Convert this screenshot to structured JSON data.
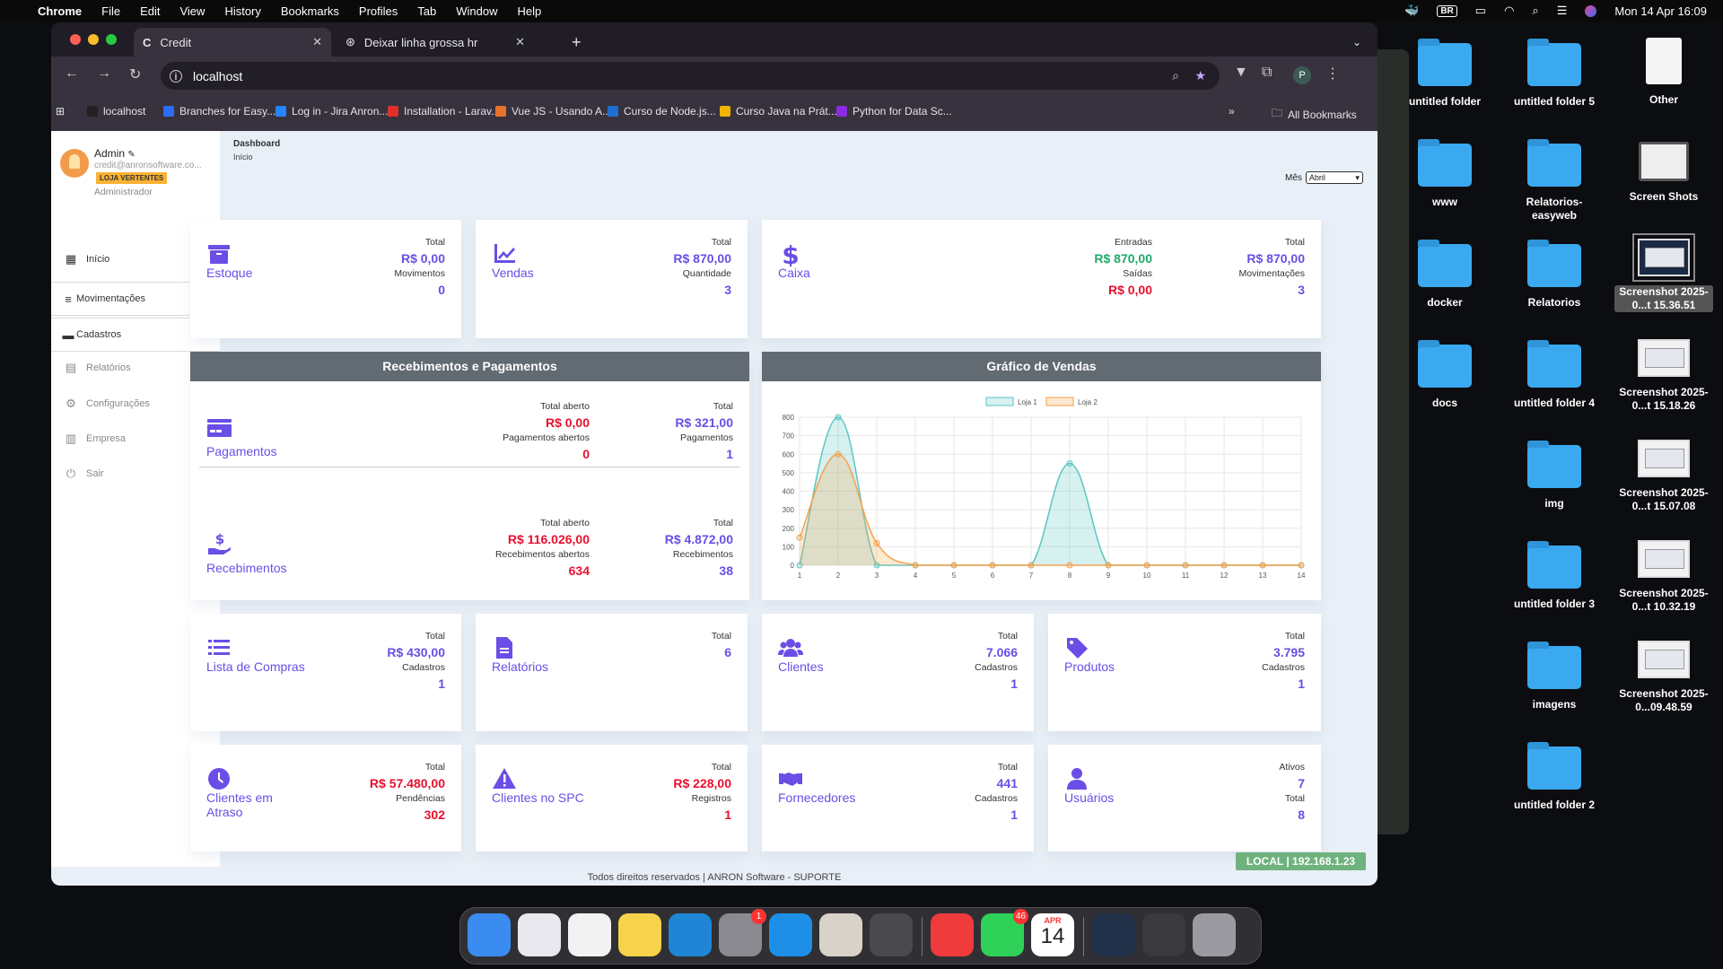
{
  "menubar": {
    "app": "Chrome",
    "items": [
      "File",
      "Edit",
      "View",
      "History",
      "Bookmarks",
      "Profiles",
      "Tab",
      "Window",
      "Help"
    ],
    "input_source": "BR",
    "datetime": "Mon 14 Apr  16:09"
  },
  "browser": {
    "tabs": [
      {
        "title": "Credit",
        "icon": "C",
        "active": true
      },
      {
        "title": "Deixar linha grossa hr",
        "icon": "openai-icon",
        "active": false
      }
    ],
    "url": "localhost",
    "profile_initial": "P",
    "bookmarks": [
      {
        "label": "localhost",
        "color": "#222"
      },
      {
        "label": "Branches for Easy...",
        "color": "#2d6df6"
      },
      {
        "label": "Log in - Jira Anron...",
        "color": "#2684ff"
      },
      {
        "label": "Installation - Larav...",
        "color": "#e0302a"
      },
      {
        "label": "Vue JS - Usando A...",
        "color": "#e8712b"
      },
      {
        "label": "Curso de Node.js...",
        "color": "#1f6fd1"
      },
      {
        "label": "Curso Java na Prát...",
        "color": "#f0b400"
      },
      {
        "label": "Python for Data Sc...",
        "color": "#8a2be2"
      }
    ],
    "all_bookmarks": "All Bookmarks"
  },
  "sidebar": {
    "user": {
      "name": "Admin",
      "email": "credit@anronsoftware.co...",
      "store": "LOJA VERTENTES",
      "role": "Administrador"
    },
    "items": [
      {
        "label": "Início",
        "icon": "dashboard-icon"
      },
      {
        "label": "Movimentações",
        "icon": "database-icon",
        "expandable": true
      },
      {
        "label": "Cadastros",
        "icon": "archive-icon",
        "expandable": true
      },
      {
        "label": "Relatórios",
        "icon": "clipboard-icon"
      },
      {
        "label": "Configurações",
        "icon": "gear-icon"
      },
      {
        "label": "Empresa",
        "icon": "building-icon"
      },
      {
        "label": "Sair",
        "icon": "power-icon"
      }
    ]
  },
  "header": {
    "title": "Dashboard",
    "breadcrumb": "Início",
    "month_label": "Mês",
    "month_value": "Abril"
  },
  "colors": {
    "accent": "#6a4ee6",
    "negative": "#e8102e",
    "positive": "#22a86a",
    "section_header": "#626a72"
  },
  "cards": [
    {
      "label": "Estoque",
      "icon": "archive-icon",
      "stats": [
        [
          {
            "label": "Total",
            "value": "R$ 0,00",
            "color": "accent"
          },
          {
            "label": "Movimentos",
            "value": "0",
            "color": "accent"
          }
        ]
      ]
    },
    {
      "label": "Vendas",
      "icon": "chart-line-icon",
      "stats": [
        [
          {
            "label": "Total",
            "value": "R$ 870,00",
            "color": "accent"
          },
          {
            "label": "Quantidade",
            "value": "3",
            "color": "accent"
          }
        ]
      ]
    },
    {
      "label": "Caixa",
      "icon": "dollar-icon",
      "stats": [
        [
          {
            "label": "Entradas",
            "value": "R$ 870,00",
            "color": "positive"
          },
          {
            "label": "Saídas",
            "value": "R$ 0,00",
            "color": "negative"
          }
        ],
        [
          {
            "label": "Total",
            "value": "R$ 870,00",
            "color": "accent"
          },
          {
            "label": "Movimentações",
            "value": "3",
            "color": "accent"
          }
        ]
      ]
    },
    {
      "label": "Lista de Compras",
      "icon": "list-icon",
      "stats": [
        [
          {
            "label": "Total",
            "value": "R$ 430,00",
            "color": "accent"
          },
          {
            "label": "Cadastros",
            "value": "1",
            "color": "accent"
          }
        ]
      ]
    },
    {
      "label": "Relatórios",
      "icon": "file-icon",
      "stats": [
        [
          {
            "label": "Total",
            "value": "6",
            "color": "accent"
          }
        ]
      ]
    },
    {
      "label": "Clientes",
      "icon": "users-icon",
      "stats": [
        [
          {
            "label": "Total",
            "value": "7.066",
            "color": "accent"
          },
          {
            "label": "Cadastros",
            "value": "1",
            "color": "accent"
          }
        ]
      ]
    },
    {
      "label": "Produtos",
      "icon": "tag-icon",
      "stats": [
        [
          {
            "label": "Total",
            "value": "3.795",
            "color": "accent"
          },
          {
            "label": "Cadastros",
            "value": "1",
            "color": "accent"
          }
        ]
      ]
    },
    {
      "label": "Clientes em Atraso",
      "icon": "clock-icon",
      "stats": [
        [
          {
            "label": "Total",
            "value": "R$ 57.480,00",
            "color": "negative"
          },
          {
            "label": "Pendências",
            "value": "302",
            "color": "negative"
          }
        ]
      ]
    },
    {
      "label": "Clientes no SPC",
      "icon": "warning-icon",
      "stats": [
        [
          {
            "label": "Total",
            "value": "R$ 228,00",
            "color": "negative"
          },
          {
            "label": "Registros",
            "value": "1",
            "color": "negative"
          }
        ]
      ]
    },
    {
      "label": "Fornecedores",
      "icon": "handshake-icon",
      "stats": [
        [
          {
            "label": "Total",
            "value": "441",
            "color": "accent"
          },
          {
            "label": "Cadastros",
            "value": "1",
            "color": "accent"
          }
        ]
      ]
    },
    {
      "label": "Usuários",
      "icon": "user-icon",
      "stats": [
        [
          {
            "label": "Ativos",
            "value": "7",
            "color": "accent"
          },
          {
            "label": "Total",
            "value": "8",
            "color": "accent"
          }
        ]
      ]
    }
  ],
  "payments_section": {
    "title": "Recebimentos e Pagamentos",
    "blocks": [
      {
        "label": "Pagamentos",
        "icon": "credit-card-icon",
        "stats": [
          [
            {
              "label": "Total aberto",
              "value": "R$ 0,00",
              "color": "negative"
            },
            {
              "label": "Pagamentos abertos",
              "value": "0",
              "color": "negative"
            }
          ],
          [
            {
              "label": "Total",
              "value": "R$ 321,00",
              "color": "accent"
            },
            {
              "label": "Pagamentos",
              "value": "1",
              "color": "accent"
            }
          ]
        ]
      },
      {
        "label": "Recebimentos",
        "icon": "hand-dollar-icon",
        "stats": [
          [
            {
              "label": "Total aberto",
              "value": "R$ 116.026,00",
              "color": "negative"
            },
            {
              "label": "Recebimentos abertos",
              "value": "634",
              "color": "negative"
            }
          ],
          [
            {
              "label": "Total",
              "value": "R$ 4.872,00",
              "color": "accent"
            },
            {
              "label": "Recebimentos",
              "value": "38",
              "color": "accent"
            }
          ]
        ]
      }
    ]
  },
  "chart_data": {
    "type": "line",
    "title": "Gráfico de Vendas",
    "x": [
      1,
      2,
      3,
      4,
      5,
      6,
      7,
      8,
      9,
      10,
      11,
      12,
      13,
      14
    ],
    "series": [
      {
        "name": "Loja 1",
        "values": [
          0,
          800,
          0,
          0,
          0,
          0,
          0,
          550,
          0,
          0,
          0,
          0,
          0,
          0
        ],
        "color": "#5bc6c2",
        "fill": "rgba(91,198,194,0.25)"
      },
      {
        "name": "Loja 2",
        "values": [
          150,
          600,
          120,
          0,
          0,
          0,
          0,
          0,
          0,
          0,
          0,
          0,
          0,
          0
        ],
        "color": "#f6a24a",
        "fill": "rgba(246,162,74,0.25)"
      }
    ],
    "ylim": [
      0,
      800
    ],
    "yticks": [
      0,
      100,
      200,
      300,
      400,
      500,
      600,
      700,
      800
    ],
    "grid": true,
    "legend": "top",
    "smooth": true
  },
  "status_badge": "LOCAL | 192.168.1.23",
  "footer": "Todos direitos reservados | ANRON Software - SUPORTE",
  "desktop": {
    "icons": [
      {
        "label": "untitled folder",
        "type": "folder"
      },
      {
        "label": "untitled folder 5",
        "type": "folder"
      },
      {
        "label": "Other",
        "type": "file"
      },
      {
        "label": "www",
        "type": "folder"
      },
      {
        "label": "Relatorios-easyweb",
        "type": "folder"
      },
      {
        "label": "Screen Shots",
        "type": "screenshot-folder"
      },
      {
        "label": "docker",
        "type": "folder"
      },
      {
        "label": "Relatorios",
        "type": "folder"
      },
      {
        "label": "Screenshot 2025-0...t 15.36.51",
        "type": "screenshot",
        "selected": true
      },
      {
        "label": "docs",
        "type": "folder"
      },
      {
        "label": "untitled folder 4",
        "type": "folder"
      },
      {
        "label": "Screenshot 2025-0...t 15.18.26",
        "type": "screenshot"
      },
      {
        "label": "img",
        "type": "folder"
      },
      {
        "label": "Screenshot 2025-0...t 15.07.08",
        "type": "screenshot"
      },
      {
        "label": "untitled folder 3",
        "type": "folder"
      },
      {
        "label": "Screenshot 2025-0...t 10.32.19",
        "type": "screenshot"
      },
      {
        "label": "imagens",
        "type": "folder"
      },
      {
        "label": "Screenshot 2025-0...09.48.59",
        "type": "screenshot"
      },
      {
        "label": "untitled folder 2",
        "type": "folder"
      }
    ]
  },
  "dock": {
    "apps": [
      {
        "name": "finder",
        "color": "#3b8cf0"
      },
      {
        "name": "launchpad",
        "color": "#e8e8ee"
      },
      {
        "name": "chrome",
        "color": "#f2f2f2"
      },
      {
        "name": "notes",
        "color": "#f6d34a"
      },
      {
        "name": "vscode",
        "color": "#1f86d6"
      },
      {
        "name": "system-settings",
        "color": "#8a8a90",
        "badge": "1"
      },
      {
        "name": "docker",
        "color": "#1d8fe6"
      },
      {
        "name": "tableplus",
        "color": "#d8d2c8"
      },
      {
        "name": "calculator",
        "color": "#4a4a4e"
      },
      {
        "name": "anydesk",
        "color": "#ef3b3b"
      },
      {
        "name": "whatsapp",
        "color": "#2fd158",
        "badge": "46"
      },
      {
        "name": "calendar",
        "color": "#ffffff",
        "month": "APR",
        "day": "14"
      },
      {
        "name": "window-thumb-1",
        "color": "#22324a"
      },
      {
        "name": "window-thumb-2",
        "color": "#3a3a3e"
      },
      {
        "name": "trash",
        "color": "#9a9aa0"
      }
    ]
  }
}
